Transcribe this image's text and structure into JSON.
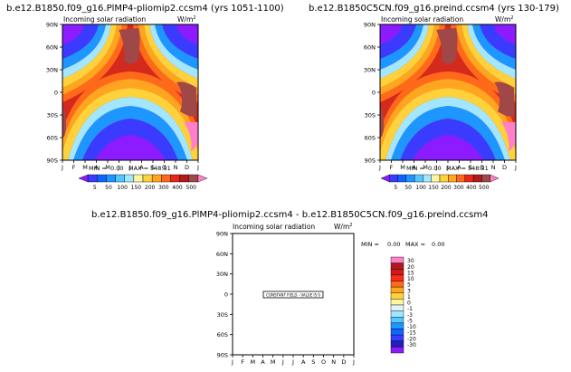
{
  "chart_data": [
    {
      "type": "heatmap",
      "title": "b.e12.B1850.f09_g16.PlMP4-pliomip2.ccsm4 (yrs 1051-1100)",
      "subtitle": "Incoming solar radiation",
      "units": "W/m",
      "units_sup": "2",
      "x_ticks": [
        "J",
        "F",
        "M",
        "A",
        "M",
        "J",
        "J",
        "A",
        "S",
        "O",
        "N",
        "D",
        "J"
      ],
      "y_ticks": [
        "90N",
        "60N",
        "30N",
        "0",
        "30S",
        "60S",
        "90S"
      ],
      "stats": {
        "min_label": "MIN =",
        "min": "0.00",
        "max_label": "MAX =",
        "max": "548.51"
      },
      "colorbar": {
        "ticks": [
          "5",
          "50",
          "100",
          "150",
          "200",
          "300",
          "400",
          "500"
        ],
        "colors": [
          "#8c1cff",
          "#3b3bff",
          "#0f64ff",
          "#1e96ff",
          "#52c8ff",
          "#a3e6ff",
          "#fff6a0",
          "#ffd23c",
          "#ffa520",
          "#ff6a1a",
          "#e8261a",
          "#b01a1a",
          "#a04848",
          "#ff80c8"
        ]
      }
    },
    {
      "type": "heatmap",
      "title": "b.e12.B1850C5CN.f09_g16.preind.ccsm4 (yrs 130-179)",
      "subtitle": "Incoming solar radiation",
      "units": "W/m",
      "units_sup": "2",
      "x_ticks": [
        "J",
        "F",
        "M",
        "A",
        "M",
        "J",
        "J",
        "A",
        "S",
        "O",
        "N",
        "D",
        "J"
      ],
      "y_ticks": [
        "90N",
        "60N",
        "30N",
        "0",
        "30S",
        "60S",
        "90S"
      ],
      "stats": {
        "min_label": "MIN =",
        "min": "0.00",
        "max_label": "MAX =",
        "max": "548.51"
      },
      "colorbar": {
        "ticks": [
          "5",
          "50",
          "100",
          "150",
          "200",
          "300",
          "400",
          "500"
        ],
        "colors": [
          "#8c1cff",
          "#3b3bff",
          "#0f64ff",
          "#1e96ff",
          "#52c8ff",
          "#a3e6ff",
          "#fff6a0",
          "#ffd23c",
          "#ffa520",
          "#ff6a1a",
          "#e8261a",
          "#b01a1a",
          "#a04848",
          "#ff80c8"
        ]
      }
    },
    {
      "type": "heatmap",
      "title": "b.e12.B1850.f09_g16.PlMP4-pliomip2.ccsm4 - b.e12.B1850C5CN.f09_g16.preind.ccsm4",
      "subtitle": "Incoming solar radiation",
      "units": "W/m",
      "units_sup": "2",
      "x_ticks": [
        "J",
        "F",
        "M",
        "A",
        "M",
        "J",
        "J",
        "A",
        "S",
        "O",
        "N",
        "D",
        "J"
      ],
      "y_ticks": [
        "90N",
        "60N",
        "30N",
        "0",
        "30S",
        "60S",
        "90S"
      ],
      "annotation": "CONSTANT FIELD - VALUE IS 0",
      "stats": {
        "min_label": "MIN =",
        "min": "0.00",
        "max_label": "MAX =",
        "max": "0.00"
      },
      "colorbar": {
        "ticks": [
          "30",
          "20",
          "15",
          "10",
          "5",
          "3",
          "1",
          "0",
          "-1",
          "-3",
          "-5",
          "-10",
          "-15",
          "-20",
          "-30"
        ],
        "colors": [
          "#ff80c8",
          "#b01a1a",
          "#d21a1a",
          "#ff2a1a",
          "#ff6a1a",
          "#ffa520",
          "#ffd23c",
          "#fff6a0",
          "#dff4ff",
          "#a3e6ff",
          "#52c8ff",
          "#1e96ff",
          "#0f64ff",
          "#3b3bff",
          "#2020c0",
          "#8c1cff"
        ]
      }
    }
  ]
}
